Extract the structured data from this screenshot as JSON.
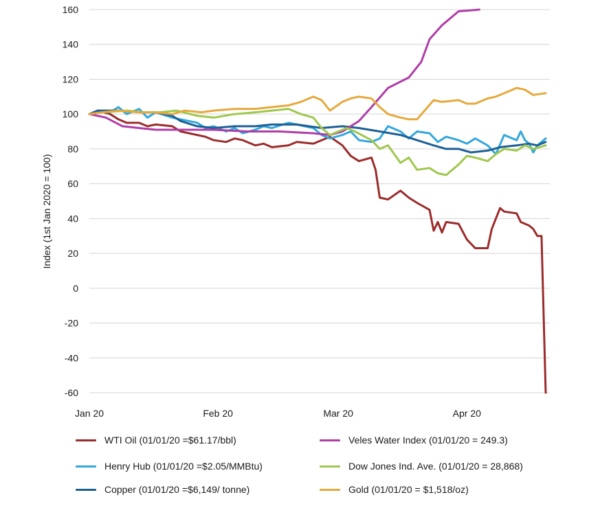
{
  "chart_data": {
    "type": "line",
    "ylabel": "Index (1st Jan 2020 = 100)",
    "ylim": [
      -60,
      160
    ],
    "yticks": [
      160,
      140,
      120,
      100,
      80,
      60,
      40,
      20,
      0,
      -20,
      -40,
      -60
    ],
    "xlim": [
      "2020-01-01",
      "2020-04-21"
    ],
    "xticks": [
      {
        "date": "2020-01-01",
        "label": "Jan 20"
      },
      {
        "date": "2020-02-01",
        "label": "Feb 20"
      },
      {
        "date": "2020-03-01",
        "label": "Mar 20"
      },
      {
        "date": "2020-04-01",
        "label": "Apr 20"
      }
    ],
    "grid": "horizontal",
    "legend_position": "bottom",
    "series": [
      {
        "name": "WTI Oil (01/01/20 =$61.17/bbl)",
        "color": "#9b2b2b",
        "points": [
          [
            "2020-01-01",
            100
          ],
          [
            "2020-01-03",
            102
          ],
          [
            "2020-01-06",
            100
          ],
          [
            "2020-01-08",
            97
          ],
          [
            "2020-01-10",
            95
          ],
          [
            "2020-01-13",
            95
          ],
          [
            "2020-01-15",
            93
          ],
          [
            "2020-01-17",
            94
          ],
          [
            "2020-01-21",
            93
          ],
          [
            "2020-01-23",
            90
          ],
          [
            "2020-01-27",
            88
          ],
          [
            "2020-01-29",
            87
          ],
          [
            "2020-01-31",
            85
          ],
          [
            "2020-02-03",
            84
          ],
          [
            "2020-02-05",
            86
          ],
          [
            "2020-02-07",
            85
          ],
          [
            "2020-02-10",
            82
          ],
          [
            "2020-02-12",
            83
          ],
          [
            "2020-02-14",
            81
          ],
          [
            "2020-02-18",
            82
          ],
          [
            "2020-02-20",
            84
          ],
          [
            "2020-02-24",
            83
          ],
          [
            "2020-02-26",
            85
          ],
          [
            "2020-02-28",
            87
          ],
          [
            "2020-03-02",
            82
          ],
          [
            "2020-03-04",
            76
          ],
          [
            "2020-03-06",
            73
          ],
          [
            "2020-03-09",
            75
          ],
          [
            "2020-03-10",
            68
          ],
          [
            "2020-03-11",
            52
          ],
          [
            "2020-03-13",
            51
          ],
          [
            "2020-03-16",
            56
          ],
          [
            "2020-03-18",
            52
          ],
          [
            "2020-03-20",
            49
          ],
          [
            "2020-03-23",
            45
          ],
          [
            "2020-03-24",
            33
          ],
          [
            "2020-03-25",
            38
          ],
          [
            "2020-03-26",
            32
          ],
          [
            "2020-03-27",
            38
          ],
          [
            "2020-03-30",
            37
          ],
          [
            "2020-04-01",
            28
          ],
          [
            "2020-04-03",
            23
          ],
          [
            "2020-04-06",
            23
          ],
          [
            "2020-04-07",
            34
          ],
          [
            "2020-04-09",
            46
          ],
          [
            "2020-04-10",
            44
          ],
          [
            "2020-04-13",
            43
          ],
          [
            "2020-04-14",
            38
          ],
          [
            "2020-04-15",
            37
          ],
          [
            "2020-04-16",
            36
          ],
          [
            "2020-04-17",
            34
          ],
          [
            "2020-04-18",
            30
          ],
          [
            "2020-04-19",
            30
          ],
          [
            "2020-04-20",
            -60
          ]
        ]
      },
      {
        "name": "Henry Hub (01/01/20 =$2.05/MMBtu)",
        "color": "#33a7db",
        "points": [
          [
            "2020-01-01",
            100
          ],
          [
            "2020-01-03",
            102
          ],
          [
            "2020-01-06",
            101
          ],
          [
            "2020-01-08",
            104
          ],
          [
            "2020-01-10",
            100
          ],
          [
            "2020-01-13",
            103
          ],
          [
            "2020-01-15",
            98
          ],
          [
            "2020-01-17",
            101
          ],
          [
            "2020-01-21",
            98
          ],
          [
            "2020-01-23",
            97
          ],
          [
            "2020-01-27",
            95
          ],
          [
            "2020-01-29",
            92
          ],
          [
            "2020-01-31",
            93
          ],
          [
            "2020-02-03",
            90
          ],
          [
            "2020-02-05",
            92
          ],
          [
            "2020-02-07",
            89
          ],
          [
            "2020-02-10",
            91
          ],
          [
            "2020-02-12",
            93
          ],
          [
            "2020-02-14",
            92
          ],
          [
            "2020-02-18",
            95
          ],
          [
            "2020-02-20",
            94
          ],
          [
            "2020-02-24",
            92
          ],
          [
            "2020-02-26",
            88
          ],
          [
            "2020-02-28",
            86
          ],
          [
            "2020-03-02",
            88
          ],
          [
            "2020-03-04",
            90
          ],
          [
            "2020-03-06",
            85
          ],
          [
            "2020-03-09",
            84
          ],
          [
            "2020-03-11",
            86
          ],
          [
            "2020-03-13",
            93
          ],
          [
            "2020-03-16",
            90
          ],
          [
            "2020-03-18",
            86
          ],
          [
            "2020-03-20",
            90
          ],
          [
            "2020-03-23",
            89
          ],
          [
            "2020-03-25",
            84
          ],
          [
            "2020-03-27",
            87
          ],
          [
            "2020-03-30",
            85
          ],
          [
            "2020-04-01",
            83
          ],
          [
            "2020-04-03",
            86
          ],
          [
            "2020-04-06",
            82
          ],
          [
            "2020-04-08",
            77
          ],
          [
            "2020-04-10",
            88
          ],
          [
            "2020-04-13",
            85
          ],
          [
            "2020-04-14",
            90
          ],
          [
            "2020-04-15",
            85
          ],
          [
            "2020-04-16",
            83
          ],
          [
            "2020-04-17",
            78
          ],
          [
            "2020-04-18",
            82
          ],
          [
            "2020-04-20",
            86
          ]
        ]
      },
      {
        "name": "Copper (01/01/20 =$6,149/ tonne)",
        "color": "#1d5f95",
        "points": [
          [
            "2020-01-01",
            100
          ],
          [
            "2020-01-03",
            102
          ],
          [
            "2020-01-08",
            102
          ],
          [
            "2020-01-13",
            101
          ],
          [
            "2020-01-17",
            101
          ],
          [
            "2020-01-21",
            99
          ],
          [
            "2020-01-23",
            96
          ],
          [
            "2020-01-27",
            93
          ],
          [
            "2020-01-31",
            92
          ],
          [
            "2020-02-05",
            93
          ],
          [
            "2020-02-10",
            93
          ],
          [
            "2020-02-14",
            94
          ],
          [
            "2020-02-20",
            94
          ],
          [
            "2020-02-26",
            92
          ],
          [
            "2020-03-02",
            93
          ],
          [
            "2020-03-06",
            92
          ],
          [
            "2020-03-11",
            90
          ],
          [
            "2020-03-16",
            88
          ],
          [
            "2020-03-20",
            85
          ],
          [
            "2020-03-24",
            82
          ],
          [
            "2020-03-27",
            80
          ],
          [
            "2020-03-30",
            80
          ],
          [
            "2020-04-02",
            78
          ],
          [
            "2020-04-06",
            79
          ],
          [
            "2020-04-09",
            81
          ],
          [
            "2020-04-13",
            82
          ],
          [
            "2020-04-16",
            83
          ],
          [
            "2020-04-18",
            82
          ],
          [
            "2020-04-20",
            84
          ]
        ]
      },
      {
        "name": "Veles Water Index (01/01/20 = 249.3)",
        "color": "#b03ca7",
        "points": [
          [
            "2020-01-01",
            100
          ],
          [
            "2020-01-05",
            98
          ],
          [
            "2020-01-09",
            93
          ],
          [
            "2020-01-13",
            92
          ],
          [
            "2020-01-17",
            91
          ],
          [
            "2020-01-23",
            91
          ],
          [
            "2020-01-31",
            91
          ],
          [
            "2020-02-08",
            90
          ],
          [
            "2020-02-16",
            90
          ],
          [
            "2020-02-24",
            89
          ],
          [
            "2020-02-28",
            88
          ],
          [
            "2020-03-02",
            90
          ],
          [
            "2020-03-06",
            96
          ],
          [
            "2020-03-09",
            104
          ],
          [
            "2020-03-13",
            115
          ],
          [
            "2020-03-18",
            121
          ],
          [
            "2020-03-21",
            130
          ],
          [
            "2020-03-23",
            143
          ],
          [
            "2020-03-26",
            151
          ],
          [
            "2020-03-30",
            159
          ],
          [
            "2020-04-04",
            160
          ]
        ]
      },
      {
        "name": "Dow Jones Ind. Ave. (01/01/20 = 28,868)",
        "color": "#9fc74d",
        "points": [
          [
            "2020-01-01",
            100
          ],
          [
            "2020-01-04",
            101
          ],
          [
            "2020-01-10",
            102
          ],
          [
            "2020-01-14",
            101
          ],
          [
            "2020-01-18",
            101
          ],
          [
            "2020-01-22",
            102
          ],
          [
            "2020-01-27",
            99
          ],
          [
            "2020-01-31",
            98
          ],
          [
            "2020-02-05",
            100
          ],
          [
            "2020-02-10",
            101
          ],
          [
            "2020-02-14",
            102
          ],
          [
            "2020-02-18",
            103
          ],
          [
            "2020-02-21",
            100
          ],
          [
            "2020-02-24",
            98
          ],
          [
            "2020-02-26",
            92
          ],
          [
            "2020-02-28",
            88
          ],
          [
            "2020-03-03",
            92
          ],
          [
            "2020-03-05",
            90
          ],
          [
            "2020-03-09",
            85
          ],
          [
            "2020-03-11",
            80
          ],
          [
            "2020-03-13",
            82
          ],
          [
            "2020-03-16",
            72
          ],
          [
            "2020-03-18",
            75
          ],
          [
            "2020-03-20",
            68
          ],
          [
            "2020-03-23",
            69
          ],
          [
            "2020-03-25",
            66
          ],
          [
            "2020-03-27",
            65
          ],
          [
            "2020-03-30",
            71
          ],
          [
            "2020-04-01",
            76
          ],
          [
            "2020-04-03",
            75
          ],
          [
            "2020-04-06",
            73
          ],
          [
            "2020-04-08",
            77
          ],
          [
            "2020-04-10",
            80
          ],
          [
            "2020-04-13",
            79
          ],
          [
            "2020-04-15",
            82
          ],
          [
            "2020-04-17",
            80
          ],
          [
            "2020-04-20",
            82
          ]
        ]
      },
      {
        "name": "Gold (01/01/20 = $1,518/oz)",
        "color": "#e5a93c",
        "points": [
          [
            "2020-01-01",
            100
          ],
          [
            "2020-01-04",
            101
          ],
          [
            "2020-01-08",
            102
          ],
          [
            "2020-01-13",
            101
          ],
          [
            "2020-01-17",
            101
          ],
          [
            "2020-01-21",
            100
          ],
          [
            "2020-01-24",
            102
          ],
          [
            "2020-01-28",
            101
          ],
          [
            "2020-01-31",
            102
          ],
          [
            "2020-02-05",
            103
          ],
          [
            "2020-02-10",
            103
          ],
          [
            "2020-02-14",
            104
          ],
          [
            "2020-02-18",
            105
          ],
          [
            "2020-02-21",
            107
          ],
          [
            "2020-02-24",
            110
          ],
          [
            "2020-02-26",
            108
          ],
          [
            "2020-02-28",
            102
          ],
          [
            "2020-03-02",
            107
          ],
          [
            "2020-03-04",
            109
          ],
          [
            "2020-03-06",
            110
          ],
          [
            "2020-03-09",
            109
          ],
          [
            "2020-03-11",
            104
          ],
          [
            "2020-03-13",
            100
          ],
          [
            "2020-03-16",
            98
          ],
          [
            "2020-03-18",
            97
          ],
          [
            "2020-03-20",
            97
          ],
          [
            "2020-03-24",
            108
          ],
          [
            "2020-03-26",
            107
          ],
          [
            "2020-03-30",
            108
          ],
          [
            "2020-04-01",
            106
          ],
          [
            "2020-04-03",
            106
          ],
          [
            "2020-04-06",
            109
          ],
          [
            "2020-04-08",
            110
          ],
          [
            "2020-04-10",
            112
          ],
          [
            "2020-04-13",
            115
          ],
          [
            "2020-04-15",
            114
          ],
          [
            "2020-04-17",
            111
          ],
          [
            "2020-04-20",
            112
          ]
        ]
      }
    ]
  },
  "legend": [
    {
      "label": "WTI Oil (01/01/20 =$61.17/bbl)",
      "color": "#9b2b2b"
    },
    {
      "label": "Veles Water Index (01/01/20 = 249.3)",
      "color": "#b03ca7"
    },
    {
      "label": "Henry Hub  (01/01/20 =$2.05/MMBtu)",
      "color": "#33a7db"
    },
    {
      "label": "Dow Jones Ind. Ave. (01/01/20 = 28,868)",
      "color": "#9fc74d"
    },
    {
      "label": "Copper (01/01/20 =$6,149/ tonne)",
      "color": "#1d5f95"
    },
    {
      "label": "Gold  (01/01/20 = $1,518/oz)",
      "color": "#e5a93c"
    }
  ]
}
